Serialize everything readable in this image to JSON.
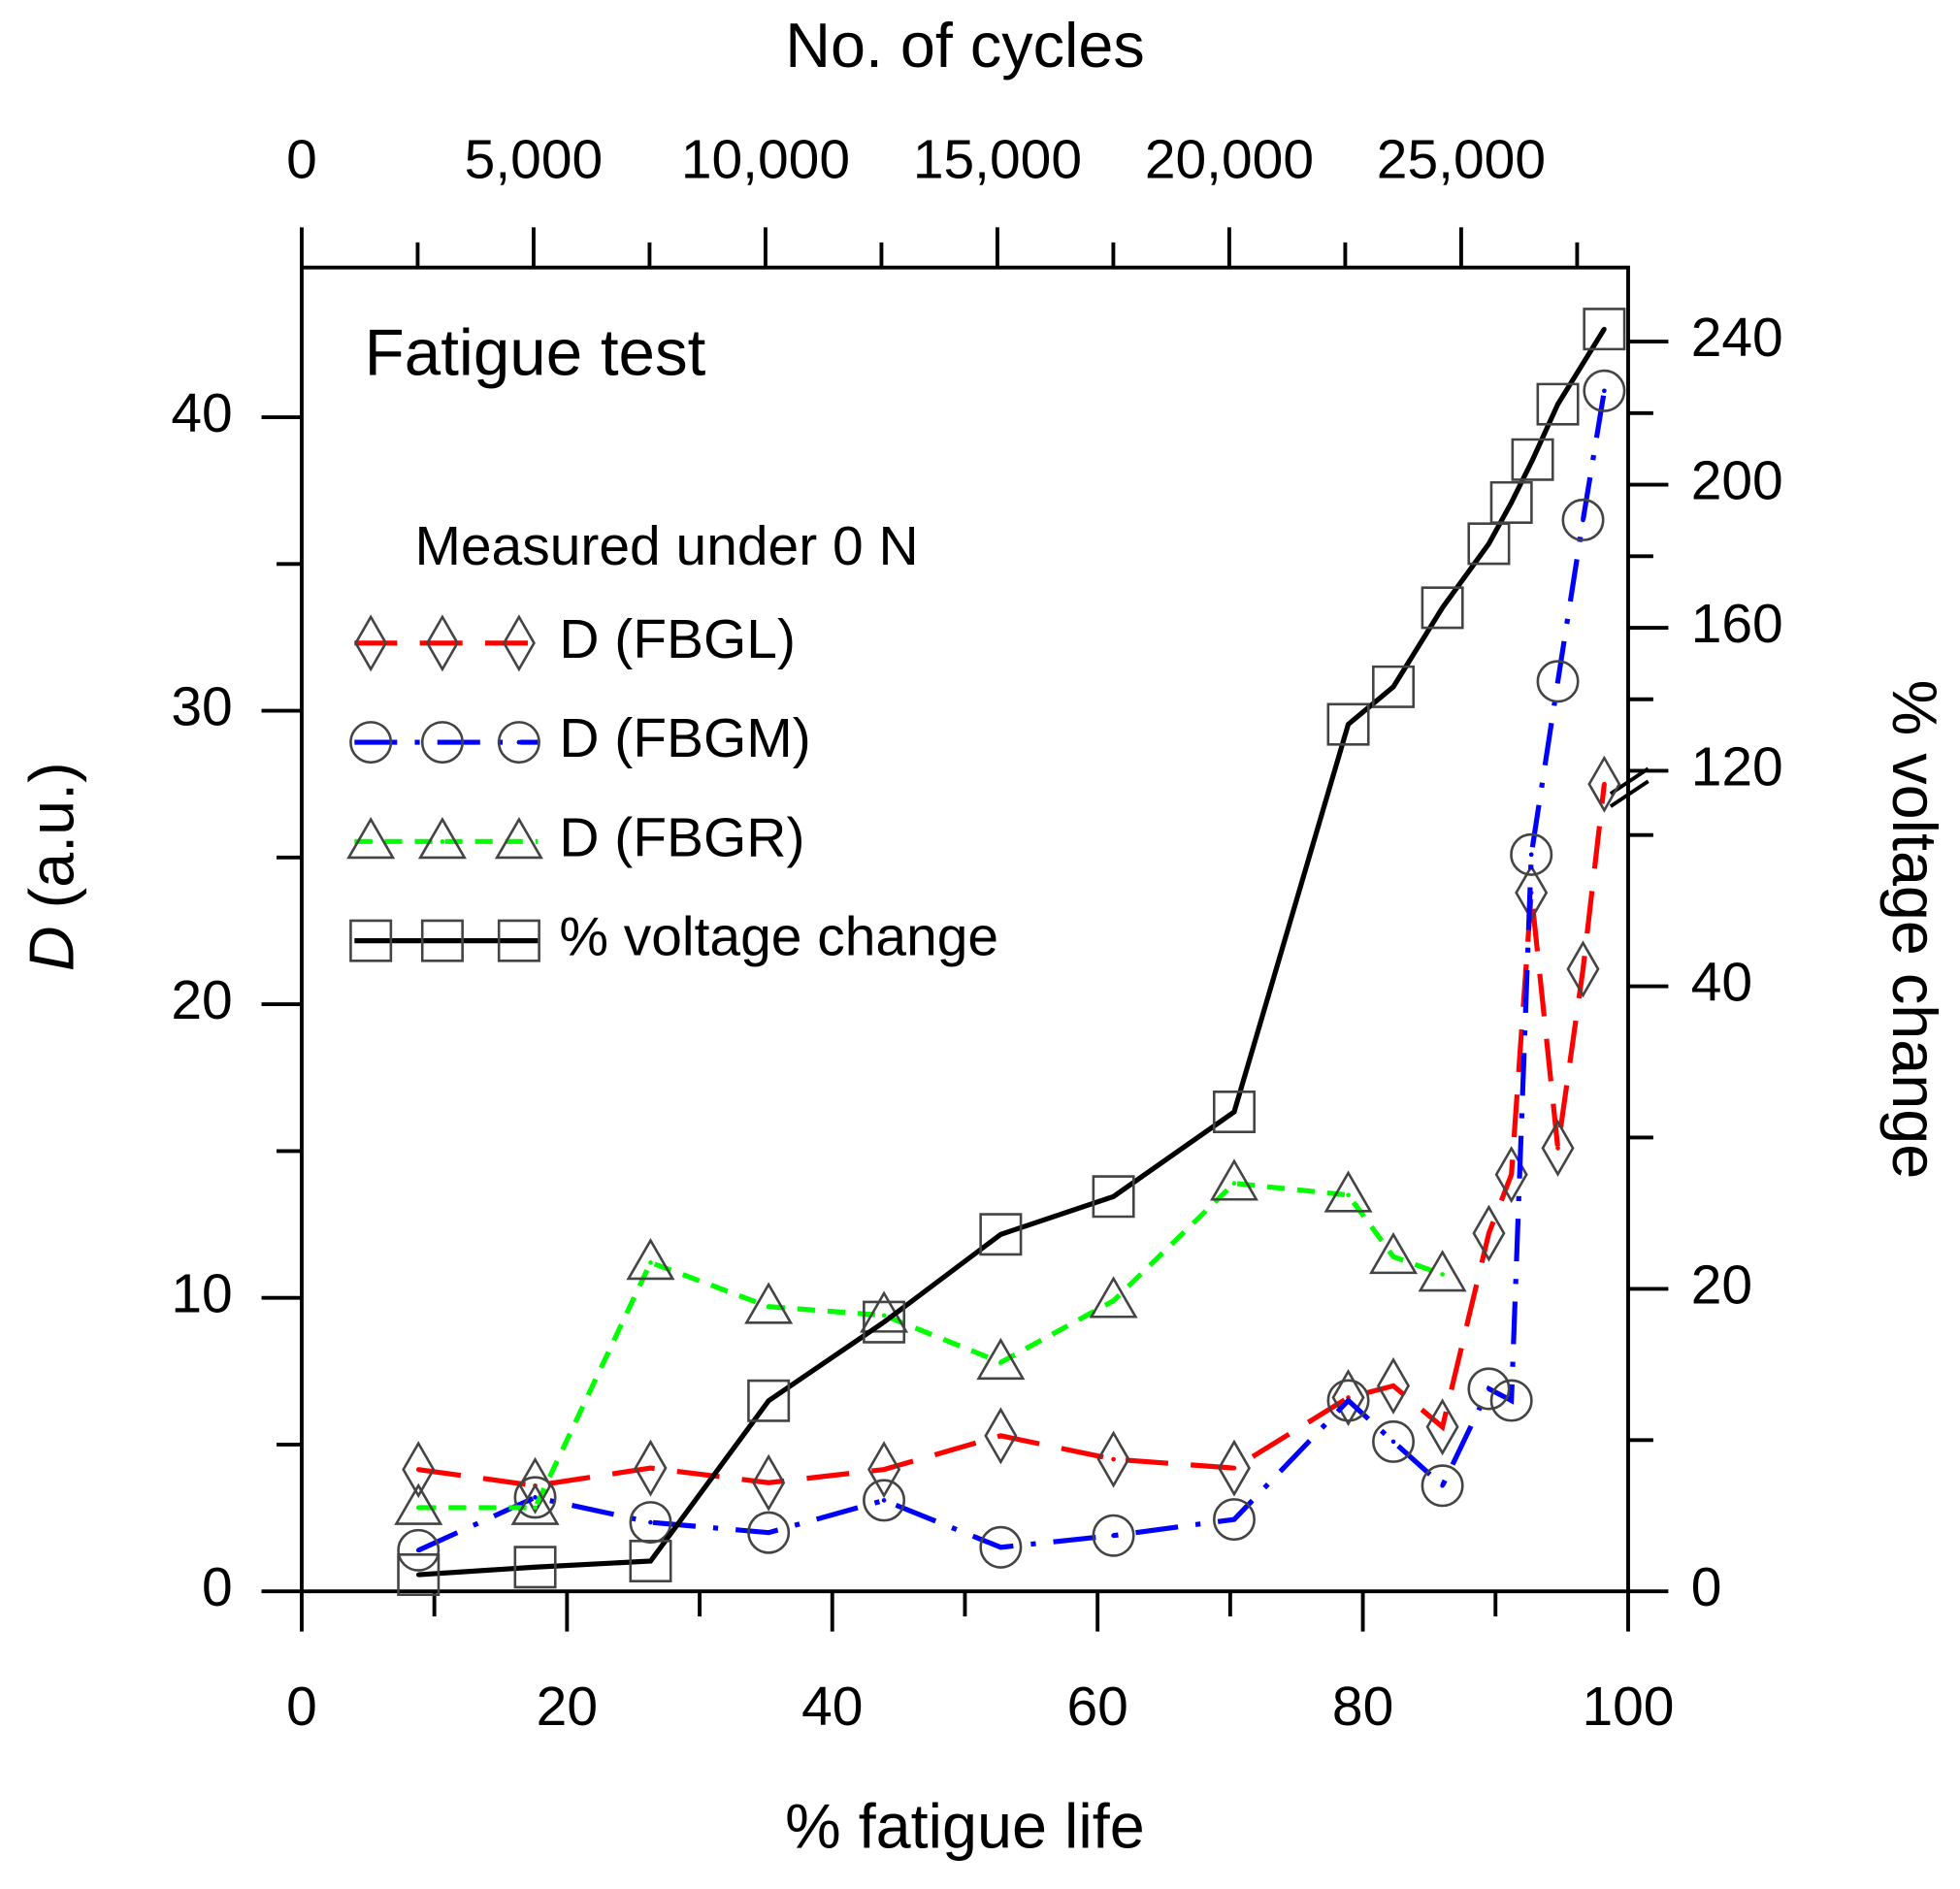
{
  "chart_data": {
    "type": "line",
    "annotation": "Fatigue test",
    "legend_title": "Measured under 0 N",
    "xlabel": "% fatigue life",
    "x2label": "No. of cycles",
    "ylabel_symbol": "D",
    "ylabel_unit": "(a.u.)",
    "y2label": "% voltage change",
    "xlim": [
      0,
      100
    ],
    "xticks": [
      0,
      20,
      40,
      60,
      80,
      100
    ],
    "xminor": [
      10,
      30,
      50,
      70,
      90
    ],
    "x2lim": [
      0,
      28600
    ],
    "x2ticks": [
      0,
      {
        "value": 5000,
        "label": "5,000"
      },
      {
        "value": 10000,
        "label": "10,000"
      },
      {
        "value": 15000,
        "label": "15,000"
      },
      {
        "value": 20000,
        "label": "20,000"
      },
      {
        "value": 25000,
        "label": "25,000"
      }
    ],
    "x2minor": [
      2500,
      7500,
      12500,
      17500,
      22500,
      27500
    ],
    "ylim": [
      0,
      45.1
    ],
    "yticks": [
      0,
      10,
      20,
      30,
      40
    ],
    "yminor": [
      5,
      15,
      25,
      35
    ],
    "y2segments": [
      {
        "lim": [
          0,
          53.3
        ],
        "ticks": [
          0,
          20,
          40
        ],
        "minor": [
          10,
          30,
          50
        ]
      },
      {
        "lim": [
          116,
          260.7
        ],
        "ticks": [
          120,
          160,
          200,
          240
        ],
        "minor": [
          140,
          180,
          220
        ]
      }
    ],
    "series": [
      {
        "name": "D (FBGL)",
        "color": "#ff0000",
        "marker": "diamond",
        "dash": "long",
        "x": [
          8.8,
          17.6,
          26.3,
          35.2,
          43.9,
          52.7,
          61.2,
          70.3,
          78.9,
          82.3,
          86,
          89.5,
          91.2,
          92.7,
          94.7,
          96.6,
          98.2
        ],
        "values": [
          4.15,
          3.6,
          4.2,
          3.7,
          4.15,
          5.3,
          4.5,
          4.2,
          6.6,
          7.0,
          5.6,
          12.2,
          14.2,
          23.8,
          15.1,
          21.2,
          27.5
        ]
      },
      {
        "name": "D (FBGM)",
        "color": "#0000ff",
        "marker": "circle",
        "dash": "dashdot",
        "x": [
          8.8,
          17.6,
          26.3,
          35.2,
          43.9,
          52.7,
          61.2,
          70.3,
          78.9,
          82.3,
          86,
          89.5,
          91.2,
          92.7,
          94.7,
          96.6,
          98.2
        ],
        "values": [
          1.4,
          3.2,
          2.35,
          2.0,
          3.1,
          1.5,
          1.9,
          2.45,
          6.5,
          5.1,
          3.6,
          6.9,
          6.5,
          25.1,
          31.0,
          36.5,
          40.9
        ]
      },
      {
        "name": "D (FBGR)",
        "color": "#00ff00",
        "marker": "triangle",
        "dash": "short",
        "x": [
          8.8,
          17.6,
          26.3,
          35.2,
          43.9,
          52.7,
          61.2,
          70.3,
          78.9,
          82.3,
          86
        ],
        "values": [
          2.85,
          2.85,
          11.2,
          9.7,
          9.4,
          7.8,
          9.9,
          13.9,
          13.5,
          11.4,
          10.8
        ]
      },
      {
        "name": "% voltage change",
        "color": "#000000",
        "marker": "square",
        "dash": "solid",
        "axis": "y2",
        "x": [
          8.8,
          17.6,
          26.3,
          35.2,
          43.9,
          52.7,
          61.2,
          70.3,
          78.9,
          82.3,
          86,
          89.5,
          91.2,
          92.8,
          94.7,
          98.2
        ],
        "values": [
          1.1,
          1.6,
          2.0,
          12.6,
          17.8,
          23.6,
          26.1,
          31.7,
          133,
          143.5,
          165.6,
          183.5,
          195,
          207,
          222.5,
          243.5
        ]
      }
    ]
  }
}
